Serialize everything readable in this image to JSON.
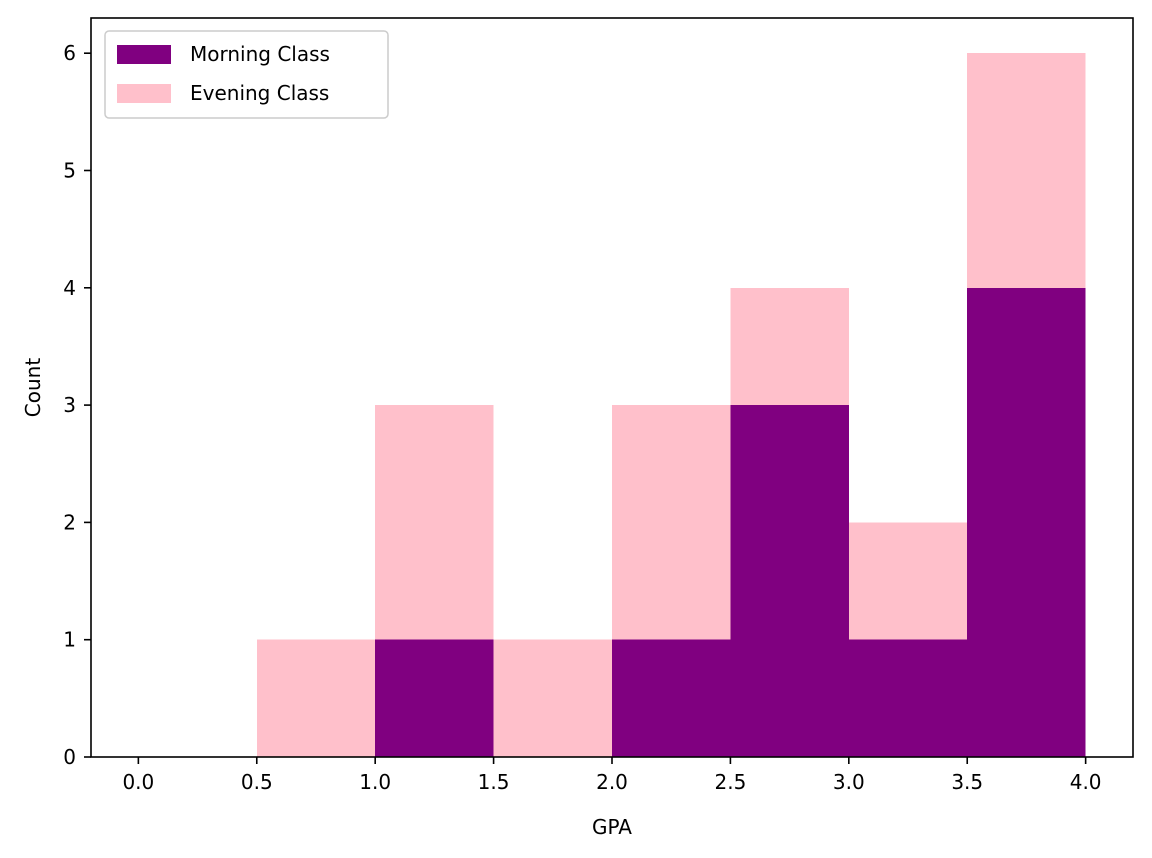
{
  "chart_data": {
    "type": "bar",
    "stacked": true,
    "bin_edges": [
      0.0,
      0.5,
      1.0,
      1.5,
      2.0,
      2.5,
      3.0,
      3.5,
      4.0
    ],
    "series": [
      {
        "name": "Morning Class",
        "color": "#800080",
        "values": [
          0,
          0,
          1,
          0,
          1,
          3,
          1,
          4
        ]
      },
      {
        "name": "Evening Class",
        "color": "#FFC0CB",
        "values": [
          0,
          1,
          2,
          1,
          2,
          1,
          1,
          2
        ]
      }
    ],
    "xlabel": "GPA",
    "ylabel": "Count",
    "xlim": [
      -0.2,
      4.2
    ],
    "ylim": [
      0,
      6.3
    ],
    "xticks": [
      0.0,
      0.5,
      1.0,
      1.5,
      2.0,
      2.5,
      3.0,
      3.5,
      4.0
    ],
    "xtick_labels": [
      "0.0",
      "0.5",
      "1.0",
      "1.5",
      "2.0",
      "2.5",
      "3.0",
      "3.5",
      "4.0"
    ],
    "yticks": [
      0,
      1,
      2,
      3,
      4,
      5,
      6
    ],
    "ytick_labels": [
      "0",
      "1",
      "2",
      "3",
      "4",
      "5",
      "6"
    ],
    "grid": false,
    "legend_position": "top-left"
  }
}
